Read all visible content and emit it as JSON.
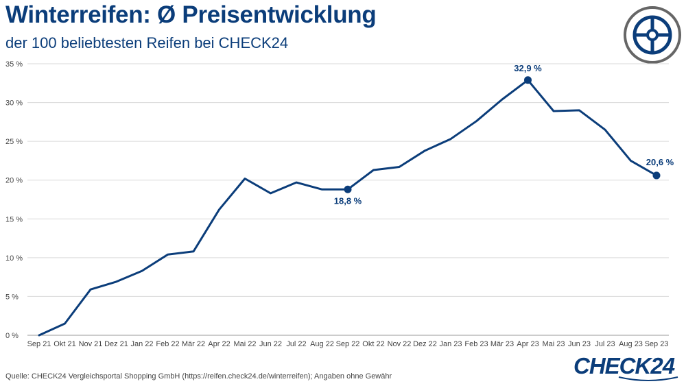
{
  "header": {
    "title": "Winterreifen: Ø Preisentwicklung",
    "subtitle": "der 100 beliebtesten Reifen bei CHECK24"
  },
  "icons": {
    "badge": "tire-icon"
  },
  "footer": {
    "source": "Quelle: CHECK24 Vergleichsportal Shopping GmbH (https://reifen.check24.de/winterreifen); Angaben ohne Gewähr",
    "brand": "CHECK24"
  },
  "colors": {
    "primary": "#0b3d7a",
    "grid": "#d9d9d9",
    "badge_ring": "#666666",
    "text": "#444444"
  },
  "chart_data": {
    "type": "line",
    "categories": [
      "Sep 21",
      "Okt 21",
      "Nov 21",
      "Dez 21",
      "Jan 22",
      "Feb 22",
      "Mär 22",
      "Apr 22",
      "Mai 22",
      "Jun 22",
      "Jul 22",
      "Aug 22",
      "Sep 22",
      "Okt 22",
      "Nov 22",
      "Dez 22",
      "Jan 23",
      "Feb 23",
      "Mär 23",
      "Apr 23",
      "Mai 23",
      "Jun 23",
      "Jul 23",
      "Aug 23",
      "Sep 23"
    ],
    "values": [
      0.0,
      1.5,
      5.9,
      6.9,
      8.3,
      10.4,
      10.8,
      16.2,
      20.2,
      18.3,
      19.7,
      18.8,
      18.8,
      21.3,
      21.7,
      23.8,
      25.3,
      27.6,
      30.4,
      32.9,
      28.9,
      29.0,
      26.5,
      22.5,
      20.6
    ],
    "ylim": [
      0,
      35
    ],
    "yticks": [
      0,
      5,
      10,
      15,
      20,
      25,
      30,
      35
    ],
    "ytick_labels": [
      "0 %",
      "5 %",
      "10 %",
      "15 %",
      "20 %",
      "25 %",
      "30 %",
      "35 %"
    ],
    "grid": true,
    "highlighted": [
      {
        "category": "Sep 22",
        "label": "18,8 %"
      },
      {
        "category": "Apr 23",
        "label": "32,9 %"
      },
      {
        "category": "Sep 23",
        "label": "20,6 %"
      }
    ]
  }
}
